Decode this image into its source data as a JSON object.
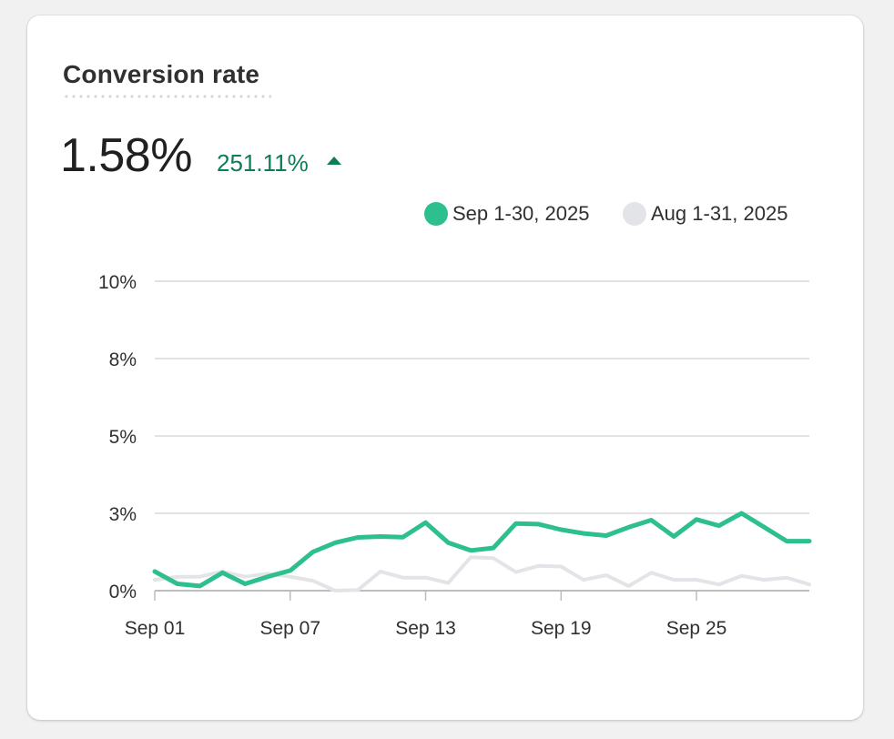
{
  "card": {
    "title": "Conversion rate",
    "value": "1.58%",
    "change": "251.11%",
    "change_direction": "up",
    "change_icon": "triangle-up-icon"
  },
  "colors": {
    "current": "#2ebf8f",
    "previous": "#e3e4e8",
    "positive": "#0c7c59",
    "grid": "#d9d9d9"
  },
  "legend": [
    {
      "label": "Sep 1-30, 2025",
      "color": "#2ebf8f"
    },
    {
      "label": "Aug 1-31, 2025",
      "color": "#e3e4e8"
    }
  ],
  "chart_data": {
    "type": "line",
    "title": "Conversion rate",
    "xlabel": "",
    "ylabel": "",
    "y_ticks": [
      "0%",
      "3%",
      "5%",
      "8%",
      "10%"
    ],
    "y_tick_values": [
      0,
      2.5,
      5,
      7.5,
      10
    ],
    "ylim": [
      0,
      10
    ],
    "x_ticks": [
      "Sep 01",
      "Sep 07",
      "Sep 13",
      "Sep 19",
      "Sep 25"
    ],
    "x_tick_days": [
      1,
      7,
      13,
      19,
      25
    ],
    "grid": true,
    "legend_position": "top-right",
    "x": [
      1,
      2,
      3,
      4,
      5,
      6,
      7,
      8,
      9,
      10,
      11,
      12,
      13,
      14,
      15,
      16,
      17,
      18,
      19,
      20,
      21,
      22,
      23,
      24,
      25,
      26,
      27,
      28,
      29,
      30
    ],
    "series": [
      {
        "name": "Sep 1-30, 2025",
        "color": "#2ebf8f",
        "values": [
          0.62,
          0.22,
          0.15,
          0.58,
          0.22,
          0.45,
          0.65,
          1.25,
          1.55,
          1.72,
          1.75,
          1.73,
          2.2,
          1.55,
          1.3,
          1.38,
          2.17,
          2.15,
          1.97,
          1.85,
          1.78,
          2.05,
          2.28,
          1.75,
          2.3,
          2.1,
          2.5,
          2.05,
          1.6,
          1.6
        ]
      },
      {
        "name": "Aug 1-31, 2025",
        "color": "#e3e4e8",
        "values": [
          0.35,
          0.45,
          0.45,
          0.62,
          0.45,
          0.55,
          0.45,
          0.32,
          0.0,
          0.02,
          0.62,
          0.42,
          0.42,
          0.25,
          1.08,
          1.05,
          0.6,
          0.8,
          0.78,
          0.35,
          0.5,
          0.15,
          0.58,
          0.35,
          0.35,
          0.2,
          0.48,
          0.35,
          0.42,
          0.2
        ]
      }
    ]
  }
}
